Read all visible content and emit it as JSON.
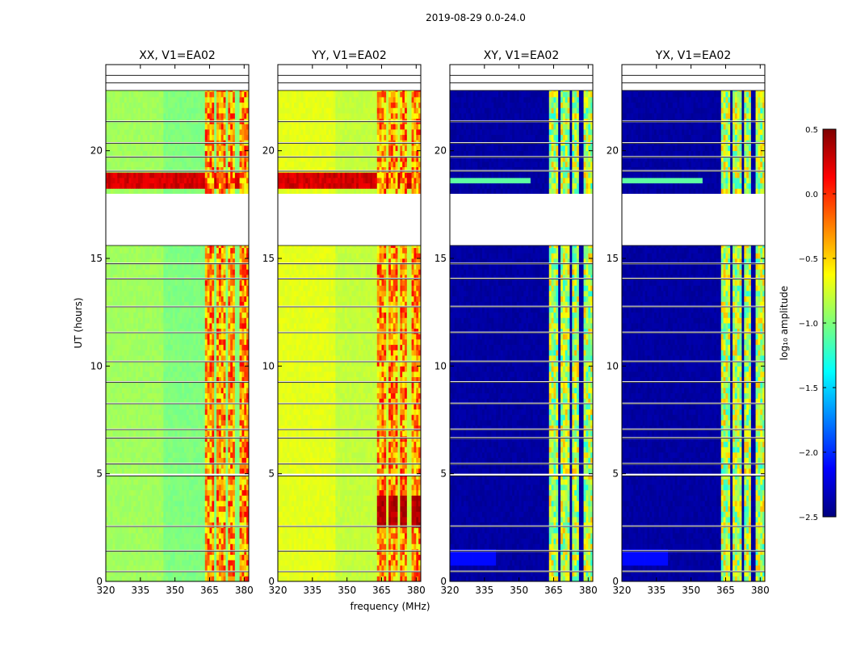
{
  "chart_data": {
    "type": "heatmap",
    "title": "2019-08-29 0.0-24.0",
    "xlabel": "frequency (MHz)",
    "ylabel": "UT (hours)",
    "xlim": [
      320,
      382
    ],
    "ylim": [
      0,
      24
    ],
    "x_ticks": [
      320,
      335,
      350,
      365,
      380
    ],
    "y_ticks": [
      0,
      5,
      10,
      15,
      20
    ],
    "rfi_bands_mhz": [
      [
        363.5,
        366.5
      ],
      [
        368.5,
        372
      ],
      [
        373.5,
        376
      ],
      [
        378,
        381.5
      ]
    ],
    "flagged_hours": [
      [
        22.8,
        24.0
      ],
      [
        15.6,
        18.0
      ],
      [
        21.35,
        21.4
      ],
      [
        2.55,
        2.6
      ],
      [
        0.45,
        0.5
      ],
      [
        1.4,
        1.45
      ],
      [
        4.9,
        5.0
      ],
      [
        5.45,
        5.5
      ],
      [
        6.65,
        6.7
      ],
      [
        7.05,
        7.1
      ],
      [
        8.25,
        8.3
      ],
      [
        9.25,
        9.3
      ],
      [
        10.2,
        10.25
      ],
      [
        11.55,
        11.6
      ],
      [
        12.75,
        12.8
      ],
      [
        14.05,
        14.1
      ],
      [
        14.75,
        14.8
      ],
      [
        19.05,
        19.1
      ],
      [
        19.7,
        19.75
      ],
      [
        20.35,
        20.4
      ],
      [
        23.15,
        23.2
      ],
      [
        23.5,
        23.55
      ]
    ],
    "panels": [
      {
        "label": "XX, V1=EA02",
        "kind": "parallel",
        "base_log_amp": -0.95
      },
      {
        "label": "YY, V1=EA02",
        "kind": "parallel",
        "base_log_amp": -0.75
      },
      {
        "label": "XY, V1=EA02",
        "kind": "cross",
        "base_log_amp": -2.4
      },
      {
        "label": "YX, V1=EA02",
        "kind": "cross",
        "base_log_amp": -2.4
      }
    ],
    "colorbar": {
      "label": "log₁₀ amplitude",
      "min": -2.5,
      "max": 0.5,
      "ticks": [
        "0.5",
        "0.0",
        "−0.5",
        "−1.0",
        "−1.5",
        "−2.0",
        "−2.5"
      ],
      "colormap": "jet"
    }
  }
}
